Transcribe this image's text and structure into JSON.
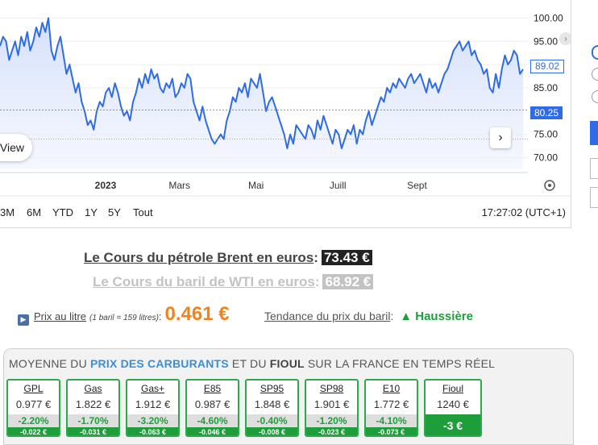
{
  "chart": {
    "y_ticks": [
      "100.00",
      "95.00",
      "90.00",
      "85.00",
      "80.25",
      "75.00",
      "70.00"
    ],
    "y_values": [
      100,
      95,
      90,
      85,
      75,
      70
    ],
    "y_range": [
      67.5,
      102.5
    ],
    "x_ticks": [
      {
        "label": "2023",
        "bold": true,
        "pos": 0.2
      },
      {
        "label": "Mars",
        "bold": false,
        "pos": 0.34
      },
      {
        "label": "Mai",
        "bold": false,
        "pos": 0.485
      },
      {
        "label": "Juill",
        "bold": false,
        "pos": 0.64
      },
      {
        "label": "Sept",
        "bold": false,
        "pos": 0.79
      }
    ],
    "last_price": "89.02",
    "ref_price": "80.25",
    "ref_value": 80.25,
    "line_color": "#2e6be6",
    "view_label": "View",
    "next_icon": "chevron-right-icon",
    "series": [
      94,
      96,
      95,
      91,
      93,
      95,
      92,
      96,
      94,
      97,
      93,
      95,
      98,
      96,
      99,
      97,
      100,
      93,
      91,
      94,
      96,
      92,
      88,
      90,
      87,
      84,
      86,
      82,
      80,
      77,
      78,
      76,
      80,
      82,
      81,
      84,
      85,
      83,
      86,
      84,
      81,
      79,
      80,
      78,
      82,
      84,
      87,
      85,
      88,
      86,
      89,
      87,
      88,
      85,
      84,
      86,
      85,
      87,
      83,
      84,
      86,
      85,
      88,
      87,
      82,
      80,
      78,
      81,
      78,
      76,
      74,
      73,
      74,
      75,
      74,
      78,
      80,
      83,
      82,
      85,
      84,
      86,
      83,
      87,
      86,
      85,
      88,
      84,
      80,
      82,
      83,
      81,
      79,
      77,
      75,
      72,
      75,
      73,
      77,
      76,
      75,
      74,
      77,
      76,
      74,
      78,
      76,
      79,
      77,
      75,
      73,
      76,
      75,
      72,
      74,
      76,
      75,
      77,
      73,
      76,
      75,
      78,
      80,
      77,
      79,
      81,
      83,
      82,
      85,
      84,
      86,
      85,
      87,
      86,
      85,
      87,
      88,
      86,
      87,
      88,
      86,
      84,
      87,
      85,
      86,
      84,
      86,
      88,
      89,
      91,
      93,
      94,
      95,
      93,
      94,
      95,
      92,
      93,
      91,
      90,
      88,
      89,
      85,
      84,
      88,
      85,
      89,
      92,
      90,
      91,
      93,
      92,
      88,
      89
    ],
    "gear_icon": "gear-icon"
  },
  "range": {
    "buttons": [
      "3M",
      "6M",
      "YTD",
      "1Y",
      "5Y",
      "Tout"
    ],
    "clock": "17:27:02 (UTC+1)"
  },
  "brent": {
    "label": "Le Cours du pétrole Brent en euros",
    "sep": ":",
    "price": "73.43 €"
  },
  "wti": {
    "label": "Le Cours du baril de WTI en euros",
    "sep": ":",
    "price": "68.92 €"
  },
  "litre": {
    "label": "Prix au litre",
    "note": "(1 baril = 159 litres)",
    "sep": ":",
    "value": "0.461 €"
  },
  "trend": {
    "label": "Tendance du prix du baril",
    "sep": ":",
    "arrow": "▲",
    "value": "Haussière"
  },
  "fuel": {
    "title_a": "MOYENNE DU ",
    "title_b": "PRIX DES CARBURANTS",
    "title_c": " ET DU ",
    "title_d": "FIOUL",
    "title_e": " SUR LA FRANCE EN TEMPS RÉEL",
    "cards": [
      {
        "name": "GPL",
        "price": "0.977 €",
        "pct": "-2.20%",
        "abs": "-0.022 €"
      },
      {
        "name": "Gas",
        "price": "1.822 €",
        "pct": "-1.70%",
        "abs": "-0.031 €"
      },
      {
        "name": "Gas+",
        "price": "1.912 €",
        "pct": "-3.20%",
        "abs": "-0.063 €"
      },
      {
        "name": "E85",
        "price": "0.987 €",
        "pct": "-4.60%",
        "abs": "-0.046 €"
      },
      {
        "name": "SP95",
        "price": "1.848 €",
        "pct": "-0.40%",
        "abs": "-0.008 €"
      },
      {
        "name": "SP98",
        "price": "1.901 €",
        "pct": "-1.20%",
        "abs": "-0.023 €"
      },
      {
        "name": "E10",
        "price": "1.772 €",
        "pct": "-4.10%",
        "abs": "-0.073 €"
      }
    ],
    "fioul": {
      "name": "Fioul",
      "price": "1240 €",
      "change": "-3 €"
    },
    "accent": "#1e9e3a"
  }
}
